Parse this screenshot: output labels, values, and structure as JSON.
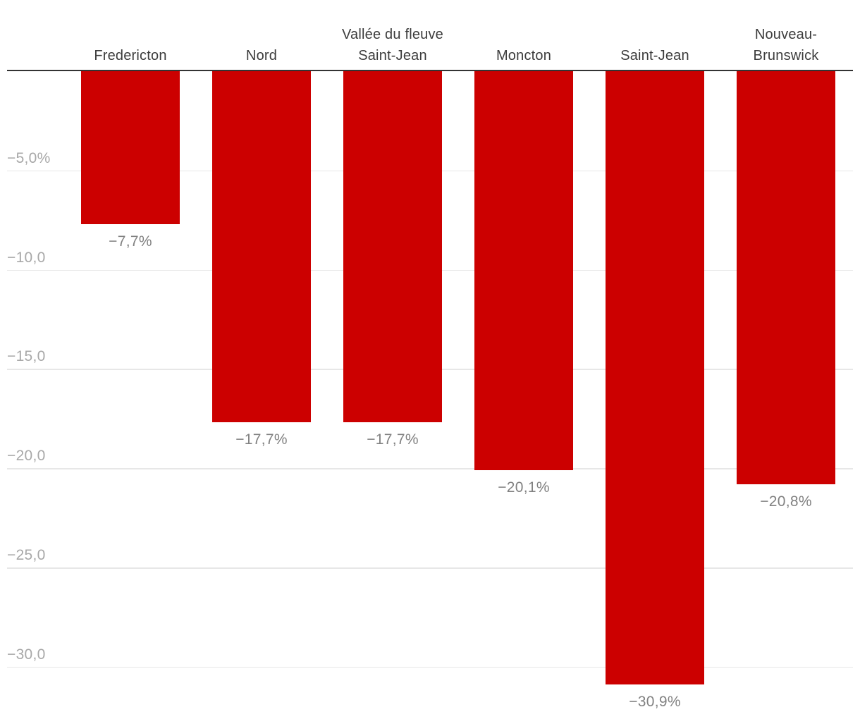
{
  "chart_data": {
    "type": "bar",
    "categories": [
      "Fredericton",
      "Nord",
      "Vallée du fleuve Saint-Jean",
      "Moncton",
      "Saint-Jean",
      "Nouveau-Brunswick"
    ],
    "values": [
      -7.7,
      -17.7,
      -17.7,
      -20.1,
      -30.9,
      -20.8
    ],
    "value_labels": [
      "−7,7%",
      "−17,7%",
      "−17,7%",
      "−20,1%",
      "−30,9%",
      "−20,8%"
    ],
    "ticks": [
      {
        "value": -5,
        "label": "−5,0%"
      },
      {
        "value": -10,
        "label": "−10,0"
      },
      {
        "value": -15,
        "label": "−15,0"
      },
      {
        "value": -20,
        "label": "−20,0"
      },
      {
        "value": -25,
        "label": "−25,0"
      },
      {
        "value": -30,
        "label": "−30,0"
      }
    ],
    "title": "",
    "xlabel": "",
    "ylabel": "",
    "ylim": [
      -32.6,
      0
    ],
    "grid": true,
    "legend": false,
    "bar_color": "#cc0000"
  },
  "colors": {
    "bar": "#cc0000",
    "axis_line": "#333333",
    "gridline": "#e7e7e7",
    "y_tick_label": "#a8a8a8",
    "value_label": "#818181",
    "category_label": "#3c3c3c",
    "background": "#ffffff"
  }
}
